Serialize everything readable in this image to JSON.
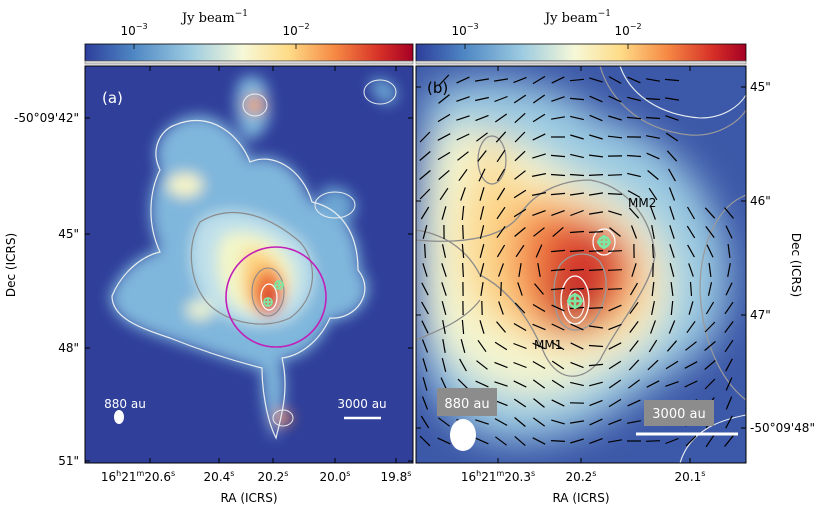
{
  "chart_data": [
    {
      "type": "heatmap",
      "panel_label": "(a)",
      "colorbar": {
        "label": "Jy beam",
        "label_exp": "−1",
        "tick_labels": [
          {
            "base": "10",
            "exp": "−3",
            "value": 0.001
          },
          {
            "base": "10",
            "exp": "−2",
            "value": 0.01
          }
        ],
        "scale": "log",
        "colormap": [
          "#2d3e9c",
          "#4f88c4",
          "#9ccbe1",
          "#f6f8d8",
          "#fedc88",
          "#f68a44",
          "#d62f27",
          "#a50026"
        ]
      },
      "xlabel": "RA (ICRS)",
      "ylabel": "Dec (ICRS)",
      "x_ticks": [
        {
          "base": "16",
          "h": "h",
          "mid": "21",
          "m": "m",
          "sec": "20.6",
          "s": "s"
        },
        {
          "sec": "20.4",
          "s": "s"
        },
        {
          "sec": "20.2",
          "s": "s"
        },
        {
          "sec": "20.0",
          "s": "s"
        },
        {
          "sec": "19.8",
          "s": "s"
        }
      ],
      "y_ticks": [
        "-50°09'42\"",
        "45\"",
        "48\"",
        "51\""
      ],
      "scalebar_label": "3000 au",
      "beam_label": "880 au",
      "contour_levels": "present",
      "polarization_segments": "present",
      "circle_color": "#c21fb8",
      "cores": 2
    },
    {
      "type": "heatmap",
      "panel_label": "(b)",
      "colorbar": {
        "label": "Jy beam",
        "label_exp": "−1",
        "tick_labels": [
          {
            "base": "10",
            "exp": "−3",
            "value": 0.001
          },
          {
            "base": "10",
            "exp": "−2",
            "value": 0.01
          }
        ],
        "scale": "log",
        "colormap": [
          "#2d3e9c",
          "#4f88c4",
          "#9ccbe1",
          "#f6f8d8",
          "#fedc88",
          "#f68a44",
          "#d62f27",
          "#a50026"
        ]
      },
      "xlabel": "RA (ICRS)",
      "ylabel": "Dec (ICRS)",
      "x_ticks": [
        {
          "base": "16",
          "h": "h",
          "mid": "21",
          "m": "m",
          "sec": "20.3",
          "s": "s"
        },
        {
          "sec": "20.2",
          "s": "s"
        },
        {
          "sec": "20.1",
          "s": "s"
        }
      ],
      "y_ticks": [
        "45\"",
        "46\"",
        "47\"",
        "-50°09'48\""
      ],
      "scalebar_label": "3000 au",
      "beam_label": "880 au",
      "sources": [
        "MM1",
        "MM2"
      ],
      "contour_levels": "present",
      "polarization_segments": "present"
    }
  ]
}
